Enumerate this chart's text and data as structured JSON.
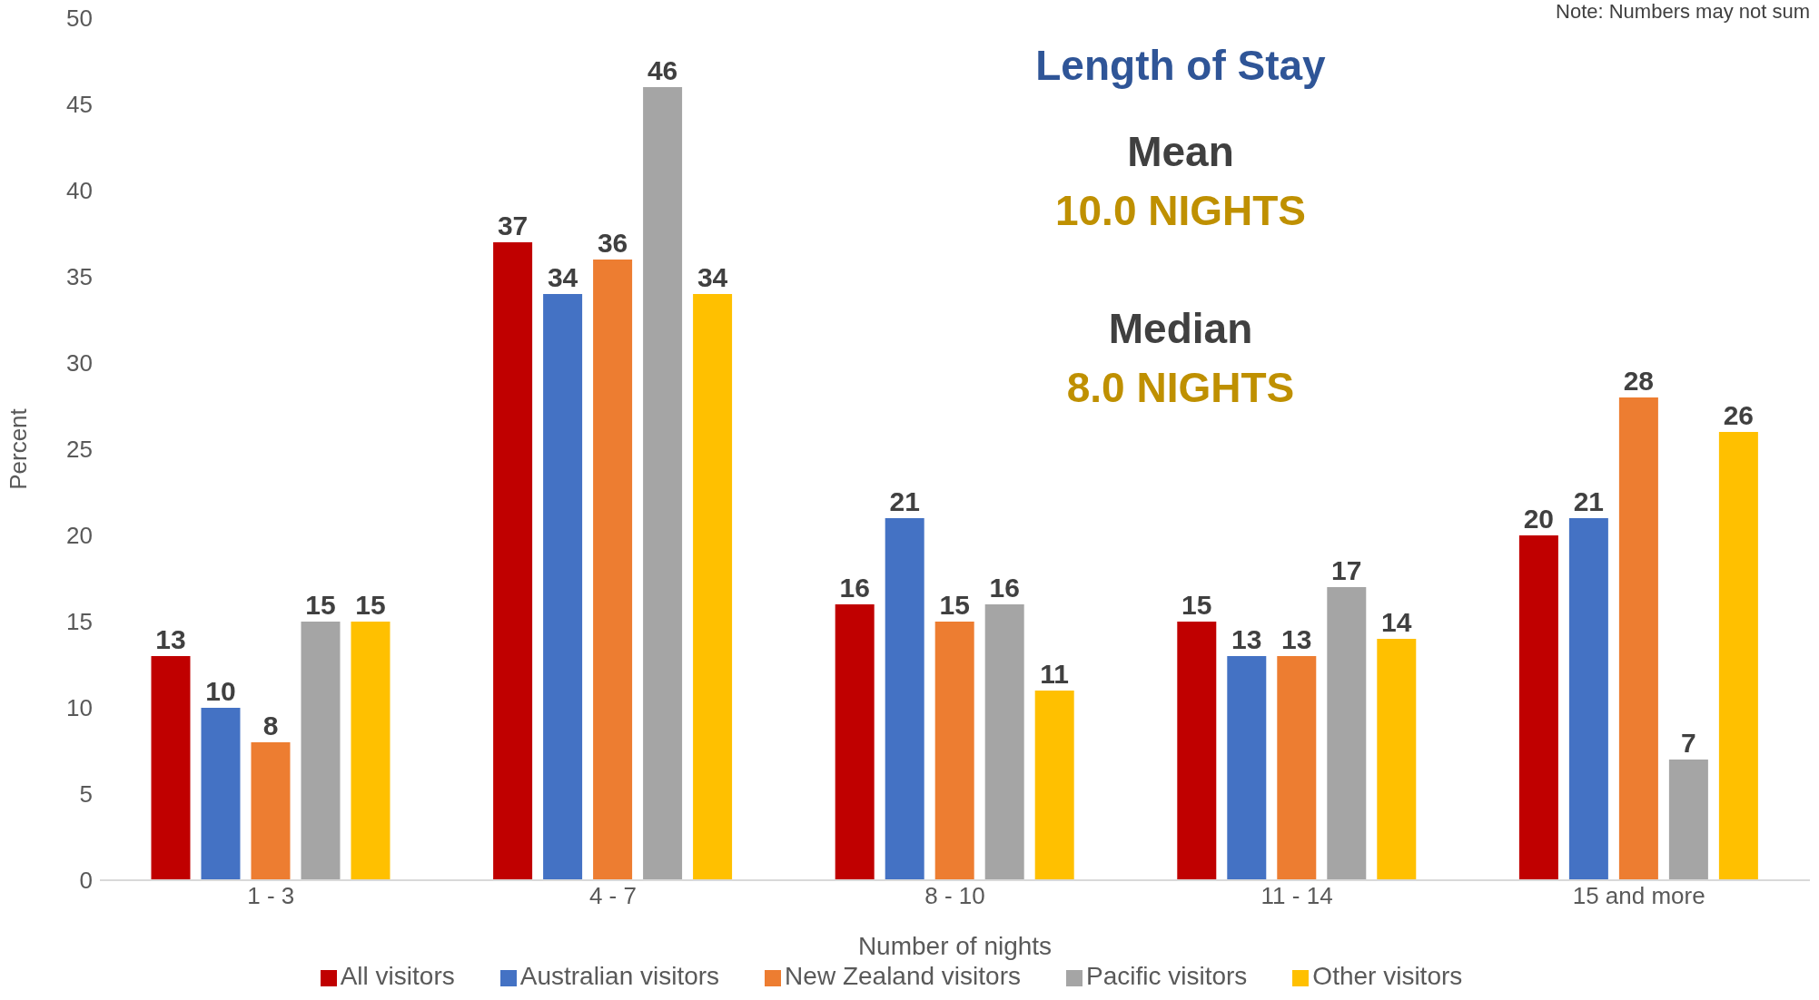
{
  "chart_data": {
    "type": "bar",
    "title": "Length of Stay",
    "xlabel": "Number of nights",
    "ylabel": "Percent",
    "annotations": [
      "Note: Numbers may not sum",
      "Mean",
      "10.0 NIGHTS",
      "Median",
      "8.0 NIGHTS"
    ],
    "categories": [
      "1 - 3",
      "4 - 7",
      "8 - 10",
      "11 - 14",
      "15 and more"
    ],
    "series": [
      {
        "name": "All visitors",
        "color": "#c00000",
        "values": [
          13,
          37,
          16,
          15,
          20
        ]
      },
      {
        "name": "Australian visitors",
        "color": "#4472c4",
        "values": [
          10,
          34,
          21,
          13,
          21
        ]
      },
      {
        "name": "New Zealand visitors",
        "color": "#ed7d31",
        "values": [
          8,
          36,
          15,
          13,
          28
        ]
      },
      {
        "name": "Pacific visitors",
        "color": "#a5a5a5",
        "values": [
          15,
          46,
          16,
          17,
          7
        ]
      },
      {
        "name": "Other visitors",
        "color": "#ffc000",
        "values": [
          15,
          34,
          11,
          14,
          26
        ]
      }
    ],
    "ylim": [
      0,
      50
    ],
    "yticks": [
      0,
      5,
      10,
      15,
      20,
      25,
      30,
      35,
      40,
      45,
      50
    ],
    "grid": false,
    "legend": "bottom",
    "data_labels": true
  }
}
